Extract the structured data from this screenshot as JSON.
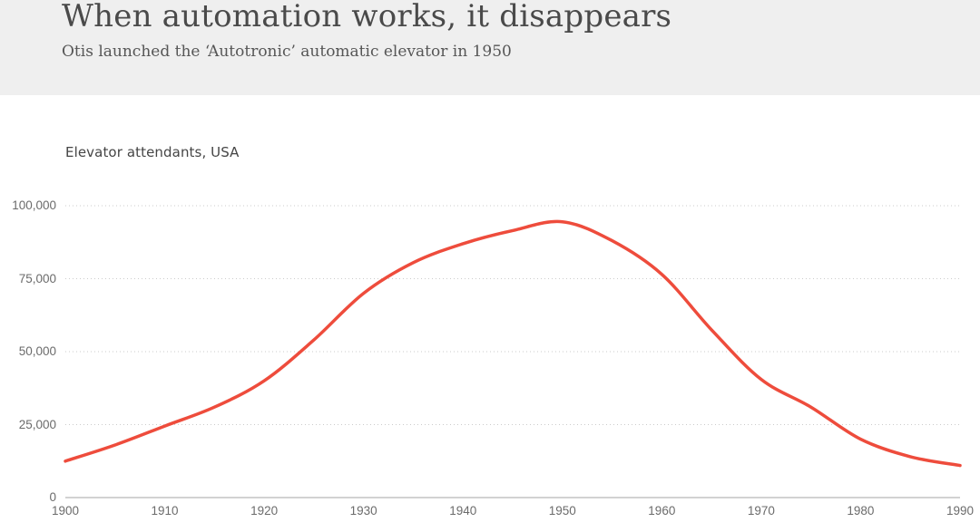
{
  "header": {
    "title": "When automation works, it disappears",
    "subtitle": "Otis launched the ‘Autotronic’ automatic elevator in 1950"
  },
  "chart_data": {
    "type": "line",
    "title": "Elevator attendants, USA",
    "xlabel": "",
    "ylabel": "",
    "xlim": [
      1900,
      1990
    ],
    "ylim": [
      0,
      100000
    ],
    "grid": "horizontal-dotted",
    "legend": "none",
    "x_ticks": [
      1900,
      1910,
      1920,
      1930,
      1940,
      1950,
      1960,
      1970,
      1980,
      1990
    ],
    "y_ticks": [
      {
        "value": 0,
        "label": "0"
      },
      {
        "value": 25000,
        "label": "25,000"
      },
      {
        "value": 50000,
        "label": "50,000"
      },
      {
        "value": 75000,
        "label": "75,000"
      },
      {
        "value": 100000,
        "label": "100,000"
      }
    ],
    "series": [
      {
        "name": "Elevator attendants, USA",
        "color": "#ee4c3c",
        "points": [
          [
            1900,
            12500
          ],
          [
            1905,
            18000
          ],
          [
            1910,
            24500
          ],
          [
            1915,
            31000
          ],
          [
            1920,
            40000
          ],
          [
            1925,
            54000
          ],
          [
            1930,
            70000
          ],
          [
            1935,
            80500
          ],
          [
            1940,
            87000
          ],
          [
            1945,
            91500
          ],
          [
            1950,
            94500
          ],
          [
            1955,
            88000
          ],
          [
            1960,
            76500
          ],
          [
            1965,
            57500
          ],
          [
            1970,
            40500
          ],
          [
            1975,
            31000
          ],
          [
            1980,
            20000
          ],
          [
            1985,
            14000
          ],
          [
            1990,
            11000
          ]
        ]
      }
    ]
  },
  "colors": {
    "header_background": "#efefef",
    "line": "#ee4c3c",
    "gridline": "#cbcbcb",
    "axis_line": "#a6a6a6",
    "title_text": "#4a4a4a",
    "tick_text": "#6b6b6b"
  }
}
